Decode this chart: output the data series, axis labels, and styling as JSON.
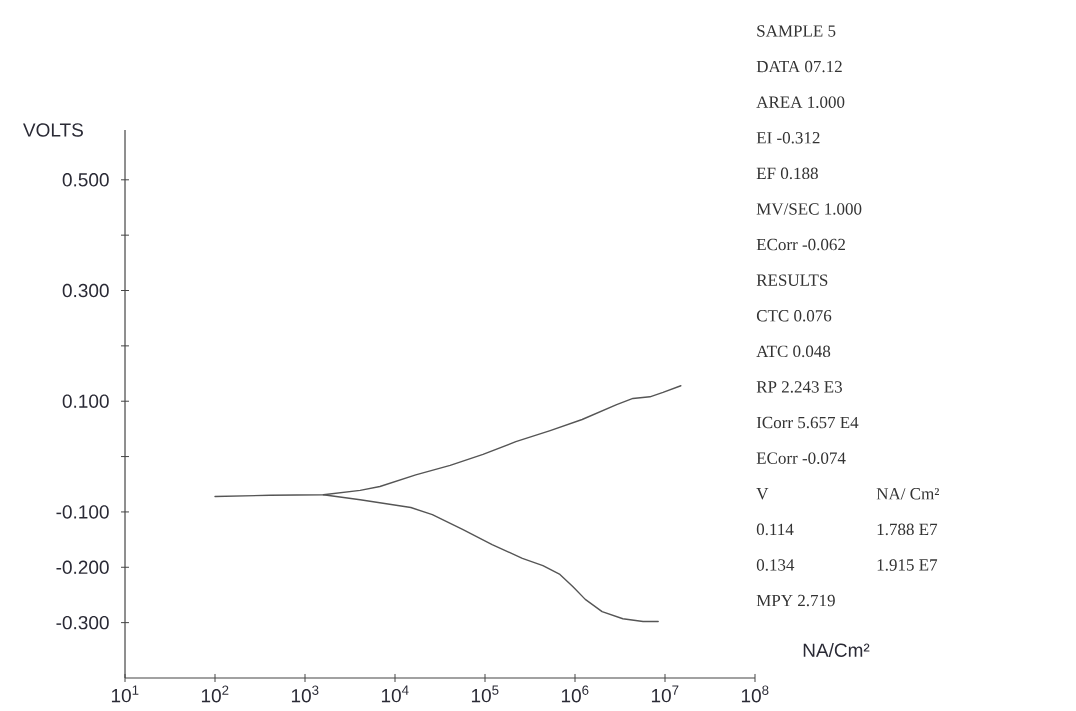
{
  "chart_data": [
    {
      "type": "line",
      "xlabel": "NA/Cm²",
      "ylabel": "VOLTS",
      "log": "x",
      "xlim": [
        10,
        100000000
      ],
      "ylim": [
        -0.4,
        0.59
      ],
      "xticks": [
        {
          "value": 10,
          "label": "10$^{1}$"
        },
        {
          "value": 100,
          "label": "10$^{2}$"
        },
        {
          "value": 1000,
          "label": "10$^{3}$"
        },
        {
          "value": 10000,
          "label": "10$^{4}$"
        },
        {
          "value": 100000,
          "label": "10$^{5}$"
        },
        {
          "value": 1000000,
          "label": "10$^{6}$"
        },
        {
          "value": 10000000,
          "label": "10$^{7}$"
        },
        {
          "value": 100000000,
          "label": "10$^{8}$"
        }
      ],
      "yticks": [
        {
          "value": 0.5,
          "label": "0.500"
        },
        {
          "value": 0.4,
          "label": null
        },
        {
          "value": 0.3,
          "label": "0.300"
        },
        {
          "value": 0.2,
          "label": null
        },
        {
          "value": 0.1,
          "label": "0.100"
        },
        {
          "value": 0,
          "label": null
        },
        {
          "value": -0.1,
          "label": "-0.100"
        },
        {
          "value": -0.2,
          "label": "-0.200"
        },
        {
          "value": -0.3,
          "label": "-0.300"
        }
      ],
      "series": [
        {
          "color": "#555555",
          "x": [
            100,
            410,
            1600,
            4100,
            6800,
            17000,
            41000,
            95000,
            220000,
            530000,
            1200000,
            2900000,
            4400000,
            6800000,
            9500000,
            15000000
          ],
          "values": [
            -0.072,
            -0.07,
            -0.069,
            -0.061,
            -0.054,
            -0.033,
            -0.016,
            0.004,
            0.027,
            0.047,
            0.067,
            0.094,
            0.105,
            0.108,
            0.116,
            0.128
          ]
        },
        {
          "color": "#555555",
          "x": [
            1600,
            4100,
            15000,
            26000,
            57000,
            120000,
            260000,
            440000,
            680000,
            950000,
            1300000,
            2000000,
            3400000,
            5700000,
            8400000
          ],
          "values": [
            -0.069,
            -0.078,
            -0.092,
            -0.105,
            -0.132,
            -0.159,
            -0.184,
            -0.197,
            -0.213,
            -0.235,
            -0.258,
            -0.28,
            -0.293,
            -0.298,
            -0.298
          ]
        }
      ]
    },
    {
      "type": "other",
      "annotations": [
        "SAMPLE 5",
        "DATA 07.12",
        "AREA 1.000",
        "EI -0.312",
        "EF 0.188",
        "MV/SEC 1.000",
        "ECorr -0.062",
        "RESULTS",
        "CTC 0.076",
        "ATC 0.048",
        "RP 2.243 E3",
        "ICorr 5.657 E4",
        "ECorr -0.074",
        "V",
        "NA/ Cm²",
        "0.114",
        "1.788 E7",
        "0.134",
        "1.915 E7",
        "MPY 2.719"
      ]
    }
  ]
}
